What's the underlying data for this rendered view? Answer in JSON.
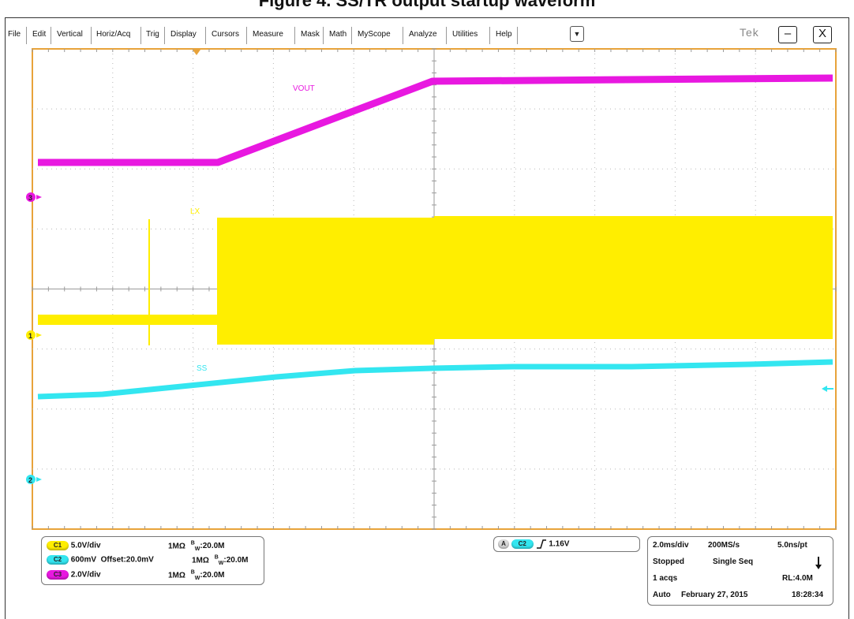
{
  "heading": "Figure 4. SS/TR output startup waveform",
  "menu": {
    "items": [
      "File",
      "Edit",
      "Vertical",
      "Horiz/Acq",
      "Trig",
      "Display",
      "Cursors",
      "Measure",
      "Mask",
      "Math",
      "MyScope",
      "Analyze",
      "Utilities",
      "Help"
    ],
    "dropdown_icon": "▼",
    "brand": "Tek",
    "minimize_icon": "–",
    "close_icon": "X"
  },
  "colors": {
    "frame": "#e8a33a",
    "ch1": "#ffee00",
    "ch2": "#33e6f0",
    "ch3": "#e818e0",
    "grid": "#b8b8b8"
  },
  "traces": {
    "vout_label": "VOUT",
    "lx_label": "LX",
    "ss_label": "SS",
    "marker_ch1": "1",
    "marker_ch2": "2",
    "marker_ch3": "3"
  },
  "channels": [
    {
      "chip": "C1",
      "text": "5.0V/div",
      "imp": "1MΩ",
      "bw": "20.0M"
    },
    {
      "chip": "C2",
      "text": "600mV  Offset:20.0mV",
      "imp": "1MΩ",
      "bw": "20.0M"
    },
    {
      "chip": "C3",
      "text": "2.0V/div",
      "imp": "1MΩ",
      "bw": "20.0M"
    }
  ],
  "bw_prefix": "B",
  "bw_sub": "W",
  "trigger": {
    "a": "A",
    "chip": "C2",
    "slope_icon": "rising-edge",
    "level": "1.16V"
  },
  "acq": {
    "timebase": "2.0ms/div",
    "rate": "200MS/s",
    "res": "5.0ns/pt",
    "state": "Stopped",
    "mode": "Single Seq",
    "count": "1 acqs",
    "rl": "RL:4.0M",
    "trig_mode": "Auto",
    "date": "February 27, 2015",
    "time": "18:28:34"
  }
}
